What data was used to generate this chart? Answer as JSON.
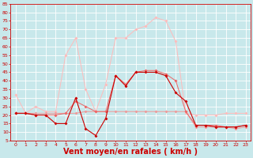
{
  "x": [
    0,
    1,
    2,
    3,
    4,
    5,
    6,
    7,
    8,
    9,
    10,
    11,
    12,
    13,
    14,
    15,
    16,
    17,
    18,
    19,
    20,
    21,
    22,
    23
  ],
  "wind_avg": [
    21,
    21,
    20,
    20,
    20,
    21,
    28,
    25,
    22,
    22,
    43,
    38,
    45,
    46,
    46,
    44,
    40,
    22,
    14,
    14,
    14,
    13,
    13,
    14
  ],
  "wind_gust": [
    32,
    21,
    25,
    22,
    22,
    55,
    65,
    35,
    22,
    38,
    65,
    65,
    70,
    72,
    77,
    75,
    63,
    21,
    20,
    20,
    20,
    21,
    21,
    21
  ],
  "wind_min": [
    21,
    21,
    21,
    21,
    21,
    21,
    21,
    22,
    22,
    22,
    22,
    22,
    22,
    22,
    22,
    22,
    22,
    22,
    13,
    13,
    13,
    13,
    12,
    13
  ],
  "wind_dark": [
    21,
    21,
    20,
    20,
    15,
    15,
    30,
    12,
    8,
    18,
    43,
    37,
    45,
    45,
    45,
    43,
    33,
    28,
    14,
    14,
    13,
    13,
    13,
    14
  ],
  "background_color": "#c8e8eb",
  "grid_color": "#aacccc",
  "line_dark": "#cc0000",
  "line_mid": "#ee6666",
  "line_light": "#ee9999",
  "line_lightest": "#ffbbbb",
  "xlabel": "Vent moyen/en rafales ( km/h )",
  "xlabel_fontsize": 7,
  "ylim": [
    5,
    85
  ],
  "yticks": [
    5,
    10,
    15,
    20,
    25,
    30,
    35,
    40,
    45,
    50,
    55,
    60,
    65,
    70,
    75,
    80,
    85
  ],
  "xticks": [
    0,
    1,
    2,
    3,
    4,
    5,
    6,
    7,
    8,
    9,
    10,
    11,
    12,
    13,
    14,
    15,
    16,
    17,
    18,
    19,
    20,
    21,
    22,
    23
  ]
}
